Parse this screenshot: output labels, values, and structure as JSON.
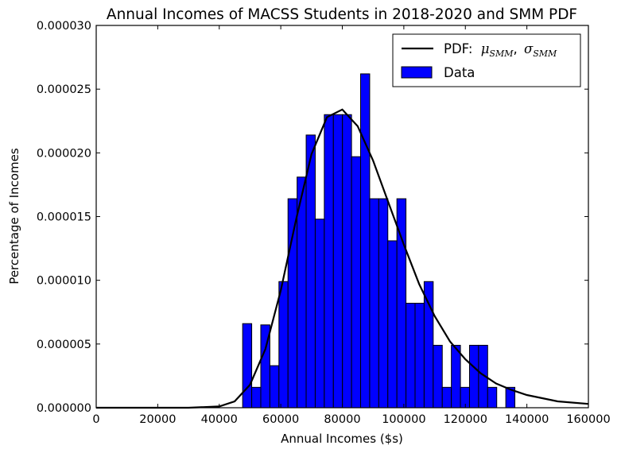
{
  "chart_data": {
    "type": "bar",
    "title": "Annual Incomes of MACSS Students in 2018-2020 and SMM PDF",
    "xlabel": "Annual Incomes ($s)",
    "ylabel": "Percentage of Incomes",
    "xlim": [
      0,
      160000
    ],
    "ylim": [
      0,
      3e-05
    ],
    "xticks": [
      "0",
      "20000",
      "40000",
      "60000",
      "80000",
      "100000",
      "120000",
      "140000",
      "160000"
    ],
    "yticks": [
      "0.000000",
      "0.000005",
      "0.000010",
      "0.000015",
      "0.000020",
      "0.000025",
      "0.000030"
    ],
    "grid": false,
    "legend_position": "top-right",
    "bar_color": "#0000ff",
    "line_color": "#000000",
    "histogram": {
      "name": "Data",
      "bin_start": 47600,
      "bin_width": 2950,
      "values": [
        6.6e-06,
        1.6e-06,
        6.5e-06,
        3.3e-06,
        9.9e-06,
        1.64e-05,
        1.81e-05,
        2.14e-05,
        1.48e-05,
        2.3e-05,
        2.3e-05,
        2.3e-05,
        1.97e-05,
        2.62e-05,
        1.64e-05,
        1.64e-05,
        1.31e-05,
        1.64e-05,
        8.2e-06,
        8.2e-06,
        9.9e-06,
        4.9e-06,
        1.6e-06,
        4.9e-06,
        1.6e-06,
        4.9e-06,
        4.9e-06,
        1.6e-06,
        0,
        1.6e-06
      ]
    },
    "pdf_curve": {
      "legend_label": "PDF:",
      "mu_symbol": "μ",
      "sigma_symbol": "σ",
      "subscript": "SMM",
      "separator": ",",
      "x": [
        0,
        30000,
        40000,
        45000,
        50000,
        55000,
        60000,
        65000,
        70000,
        75000,
        80000,
        85000,
        90000,
        95000,
        100000,
        105000,
        110000,
        115000,
        120000,
        125000,
        130000,
        135000,
        140000,
        150000,
        160000
      ],
      "y": [
        0,
        0,
        1e-07,
        5e-07,
        1.8e-06,
        4.6e-06,
        9.2e-06,
        1.48e-05,
        1.99e-05,
        2.28e-05,
        2.34e-05,
        2.21e-05,
        1.94e-05,
        1.61e-05,
        1.28e-05,
        9.7e-06,
        7.2e-06,
        5.2e-06,
        3.8e-06,
        2.7e-06,
        1.9e-06,
        1.4e-06,
        1e-06,
        5e-07,
        3e-07
      ]
    }
  }
}
